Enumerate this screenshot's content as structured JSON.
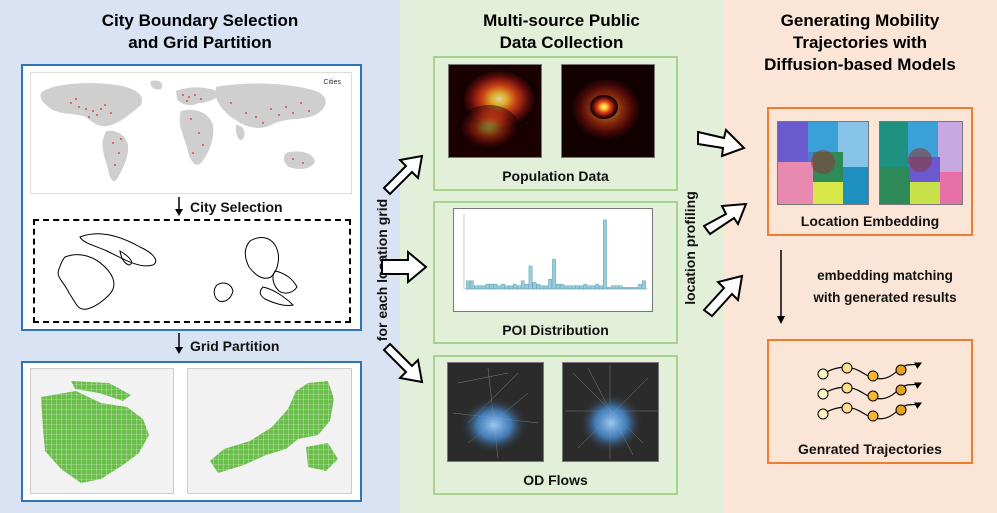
{
  "columns": {
    "city": {
      "title": "City Boundary Selection\nand Grid Partition"
    },
    "data": {
      "title": "Multi-source Public\nData Collection"
    },
    "gen": {
      "title": "Generating Mobility\nTrajectories with\nDiffusion-based Models"
    }
  },
  "labels": {
    "cities_legend": "Cities",
    "city_selection": "City Selection",
    "grid_partition": "Grid Partition",
    "for_each_grid": "for each location grid",
    "population": "Population Data",
    "poi": "POI Distribution",
    "od": "OD Flows",
    "location_profiling": "location profiling",
    "location_embedding": "Location Embedding",
    "embedding_matching": "embedding matching\nwith generated results",
    "trajectories": "Genrated Trajectories"
  },
  "colors": {
    "blue_border": "#2e75b6",
    "green_border": "#a9d18e",
    "orange_border": "#ed7d31",
    "grid_green": "#6abf4b",
    "poi_bar": "#92cddc"
  },
  "chart_data": {
    "type": "bar",
    "values": [
      5,
      5,
      2,
      2,
      2,
      3,
      3,
      3,
      2,
      3,
      2,
      2,
      3,
      2,
      5,
      3,
      14,
      4,
      3,
      2,
      2,
      6,
      18,
      3,
      3,
      2,
      2,
      2,
      2,
      2,
      3,
      2,
      2,
      3,
      2,
      42,
      1,
      2,
      2,
      2,
      1,
      1,
      1,
      1,
      3,
      5
    ],
    "ylim": [
      0,
      45
    ]
  }
}
